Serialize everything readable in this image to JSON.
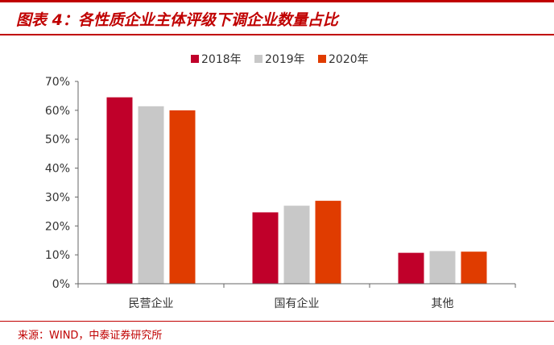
{
  "title": "图表 4：各性质企业主体评级下调企业数量占比",
  "source": "来源：WIND，中泰证券研究所",
  "chart_data": {
    "type": "bar",
    "categories": [
      "民营企业",
      "国有企业",
      "其他"
    ],
    "series": [
      {
        "name": "2018年",
        "values": [
          64.5,
          24.7,
          10.7
        ],
        "color": "#c0002a"
      },
      {
        "name": "2019年",
        "values": [
          61.4,
          27.0,
          11.3
        ],
        "color": "#c8c8c8"
      },
      {
        "name": "2020年",
        "values": [
          60.0,
          28.7,
          11.1
        ],
        "color": "#e03c00"
      }
    ],
    "yticks": [
      "0%",
      "10%",
      "20%",
      "30%",
      "40%",
      "50%",
      "60%",
      "70%"
    ],
    "ylim": [
      0,
      70
    ],
    "legend_position": "top-center",
    "grid": false
  }
}
